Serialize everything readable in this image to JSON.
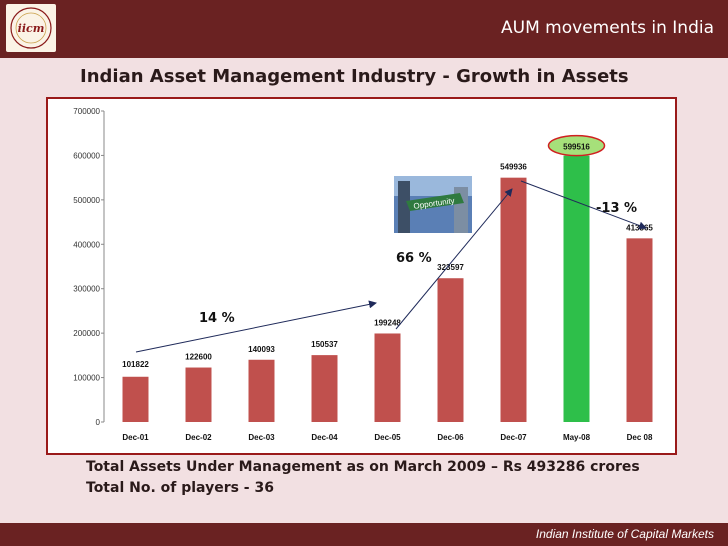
{
  "header": {
    "title": "AUM movements in India",
    "logo_text": "iicm"
  },
  "subtitle": "Indian Asset Management Industry -  Growth in Assets",
  "colors": {
    "header_bg": "#6a2222",
    "bar": "#c0504d",
    "highlight_bar": "#2ebf4a",
    "highlight_label_bg": "#a6e07a"
  },
  "chart_data": {
    "type": "bar",
    "title": "Indian Asset Management Industry -  Growth in Assets",
    "categories": [
      "Dec-01",
      "Dec-02",
      "Dec-03",
      "Dec-04",
      "Dec-05",
      "Dec-06",
      "Dec-07",
      "May-08",
      "Dec 08"
    ],
    "values": [
      101822,
      122600,
      140093,
      150537,
      199248,
      323597,
      549936,
      599516,
      413365
    ],
    "data_labels": [
      "101822",
      "122600",
      "140093",
      "150537",
      "199248",
      "323597",
      "549936",
      "599516",
      "413365"
    ],
    "highlight_index": 7,
    "ylim": [
      0,
      700000
    ],
    "yticks": [
      "0",
      "100000",
      "200000",
      "300000",
      "400000",
      "500000",
      "600000",
      "700000"
    ],
    "xlabel": "",
    "ylabel": "",
    "annotations": [
      {
        "text": "14 %"
      },
      {
        "text": "66 %"
      },
      {
        "text": "-13 %"
      }
    ],
    "image_label": "Opportunity"
  },
  "footnotes": {
    "line1": "Total Assets Under Management as on March 2009 – Rs 493286 crores",
    "line2": "Total No. of players - 36"
  },
  "footer": {
    "text": "Indian Institute of Capital Markets"
  }
}
